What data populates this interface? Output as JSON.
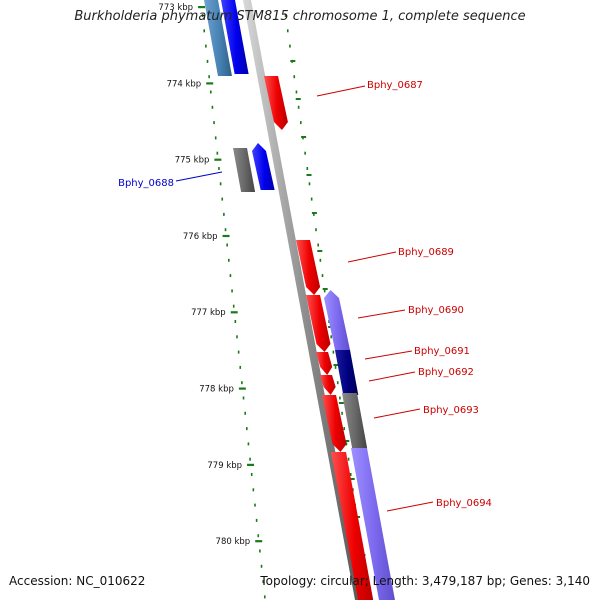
{
  "title": "Burkholderia phymatum STM815 chromosome 1, complete sequence",
  "footer": {
    "accession": "Accession: NC_010622",
    "summary": "Topology: circular; Length: 3,479,187 bp; Genes: 3,140"
  },
  "colors": {
    "forward_gene": "#ff0000",
    "reverse_gene": "#0000ff",
    "grey_feature": "#666666",
    "lavender_feature": "#7b68ee",
    "steel_feature": "#4682b4",
    "navy_feature": "#000080",
    "backbone": "#909090",
    "tick": "#1a7a1a",
    "label_forward": "#cc0000",
    "label_reverse": "#0000cc"
  },
  "scale": {
    "tick_labels": [
      "773 kbp",
      "774 kbp",
      "775 kbp",
      "776 kbp",
      "777 kbp",
      "778 kbp",
      "779 kbp",
      "780 kbp"
    ]
  },
  "genes": [
    {
      "label": "Bphy_0687",
      "strand": "forward"
    },
    {
      "label": "Bphy_0688",
      "strand": "reverse"
    },
    {
      "label": "Bphy_0689",
      "strand": "forward"
    },
    {
      "label": "Bphy_0690",
      "strand": "forward"
    },
    {
      "label": "Bphy_0691",
      "strand": "forward"
    },
    {
      "label": "Bphy_0692",
      "strand": "forward"
    },
    {
      "label": "Bphy_0693",
      "strand": "forward"
    },
    {
      "label": "Bphy_0694",
      "strand": "forward"
    }
  ]
}
